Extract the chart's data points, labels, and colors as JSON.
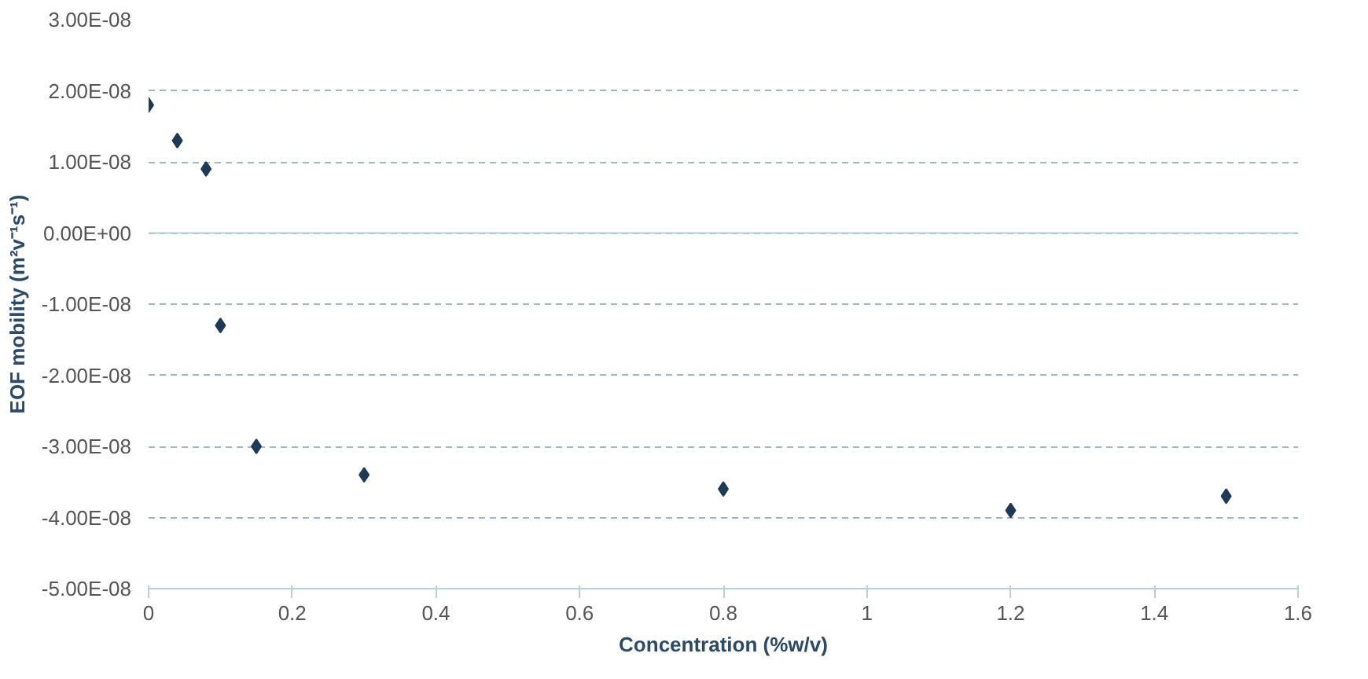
{
  "chart_data": {
    "type": "scatter",
    "xlabel": "Concentration (%w/v)",
    "ylabel": "EOF mobility (m²v⁻¹s⁻¹)",
    "x": [
      0,
      0.04,
      0.08,
      0.1,
      0.15,
      0.3,
      0.8,
      1.2,
      1.5
    ],
    "series": [
      {
        "color": "#1f3a56",
        "values": [
          1.8e-08,
          1.3e-08,
          9e-09,
          -1.3e-08,
          -3e-08,
          -3.4e-08,
          -3.6e-08,
          -3.9e-08,
          -3.7e-08
        ]
      }
    ],
    "xlim": [
      0,
      1.6
    ],
    "xticks": [
      0,
      0.2,
      0.4,
      0.6,
      0.8,
      1,
      1.2,
      1.4,
      1.6
    ],
    "ylim": [
      -5e-08,
      3e-08
    ],
    "yticks": [
      {
        "value": 3e-08,
        "label": "3.00E-08"
      },
      {
        "value": 2e-08,
        "label": "2.00E-08"
      },
      {
        "value": 1e-08,
        "label": "1.00E-08"
      },
      {
        "value": 0,
        "label": "0.00E+00"
      },
      {
        "value": -1e-08,
        "label": "-1.00E-08"
      },
      {
        "value": -2e-08,
        "label": "-2.00E-08"
      },
      {
        "value": -3e-08,
        "label": "-3.00E-08"
      },
      {
        "value": -4e-08,
        "label": "-4.00E-08"
      },
      {
        "value": -5e-08,
        "label": "-5.00E-08"
      }
    ],
    "grid": "y",
    "marker": "diamond"
  }
}
